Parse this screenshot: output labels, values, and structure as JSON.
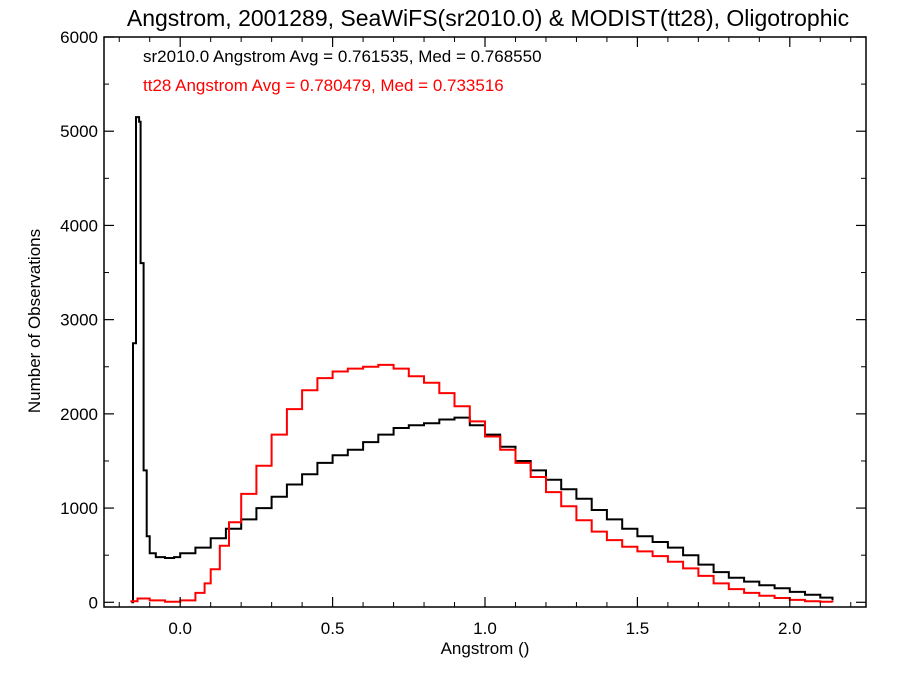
{
  "chart_data": {
    "type": "histogram",
    "title": "Angstrom, 2001289, SeaWiFS(sr2010.0) & MODIST(tt28), Oligotrophic",
    "xlabel": "Angstrom ()",
    "ylabel": "Number of Observations",
    "xlim": [
      -0.25,
      2.25
    ],
    "ylim": [
      -50,
      6000
    ],
    "xticks": [
      0.0,
      0.5,
      1.0,
      1.5,
      2.0
    ],
    "xtick_labels": [
      "0.0",
      "0.5",
      "1.0",
      "1.5",
      "2.0"
    ],
    "yticks": [
      0,
      1000,
      2000,
      3000,
      4000,
      5000,
      6000
    ],
    "ytick_labels": [
      "0",
      "1000",
      "2000",
      "3000",
      "4000",
      "5000",
      "6000"
    ],
    "grid": false,
    "legend": {
      "placement": "top-left",
      "entries": [
        {
          "text": "sr2010.0 Angstrom Avg = 0.761535, Med = 0.768550",
          "color": "#000000"
        },
        {
          "text": "tt28 Angstrom Avg = 0.780479, Med = 0.733516",
          "color": "#ff0000"
        }
      ]
    },
    "series": [
      {
        "name": "sr2010.0",
        "color": "#000000",
        "step": true,
        "points": [
          [
            -0.16,
            0
          ],
          [
            -0.155,
            2750
          ],
          [
            -0.145,
            5150
          ],
          [
            -0.135,
            5100
          ],
          [
            -0.13,
            3600
          ],
          [
            -0.12,
            1400
          ],
          [
            -0.11,
            700
          ],
          [
            -0.1,
            520
          ],
          [
            -0.08,
            480
          ],
          [
            -0.05,
            470
          ],
          [
            -0.02,
            480
          ],
          [
            0.0,
            520
          ],
          [
            0.05,
            580
          ],
          [
            0.1,
            680
          ],
          [
            0.15,
            780
          ],
          [
            0.2,
            880
          ],
          [
            0.25,
            1000
          ],
          [
            0.3,
            1120
          ],
          [
            0.35,
            1250
          ],
          [
            0.4,
            1360
          ],
          [
            0.45,
            1480
          ],
          [
            0.5,
            1560
          ],
          [
            0.55,
            1620
          ],
          [
            0.6,
            1700
          ],
          [
            0.65,
            1780
          ],
          [
            0.7,
            1850
          ],
          [
            0.75,
            1880
          ],
          [
            0.8,
            1900
          ],
          [
            0.85,
            1940
          ],
          [
            0.9,
            1960
          ],
          [
            0.95,
            1880
          ],
          [
            1.0,
            1780
          ],
          [
            1.05,
            1650
          ],
          [
            1.1,
            1500
          ],
          [
            1.15,
            1400
          ],
          [
            1.2,
            1300
          ],
          [
            1.25,
            1200
          ],
          [
            1.3,
            1100
          ],
          [
            1.35,
            980
          ],
          [
            1.4,
            880
          ],
          [
            1.45,
            780
          ],
          [
            1.5,
            700
          ],
          [
            1.55,
            640
          ],
          [
            1.6,
            580
          ],
          [
            1.65,
            500
          ],
          [
            1.7,
            400
          ],
          [
            1.75,
            320
          ],
          [
            1.8,
            260
          ],
          [
            1.85,
            220
          ],
          [
            1.9,
            180
          ],
          [
            1.95,
            150
          ],
          [
            2.0,
            110
          ],
          [
            2.05,
            80
          ],
          [
            2.1,
            50
          ],
          [
            2.14,
            20
          ]
        ]
      },
      {
        "name": "tt28",
        "color": "#ff0000",
        "step": true,
        "points": [
          [
            -0.16,
            10
          ],
          [
            -0.14,
            40
          ],
          [
            -0.1,
            20
          ],
          [
            -0.05,
            5
          ],
          [
            0.0,
            20
          ],
          [
            0.05,
            100
          ],
          [
            0.08,
            200
          ],
          [
            0.1,
            350
          ],
          [
            0.13,
            600
          ],
          [
            0.16,
            850
          ],
          [
            0.2,
            1150
          ],
          [
            0.25,
            1450
          ],
          [
            0.3,
            1780
          ],
          [
            0.35,
            2050
          ],
          [
            0.4,
            2250
          ],
          [
            0.45,
            2380
          ],
          [
            0.5,
            2450
          ],
          [
            0.55,
            2480
          ],
          [
            0.6,
            2500
          ],
          [
            0.65,
            2520
          ],
          [
            0.7,
            2480
          ],
          [
            0.75,
            2400
          ],
          [
            0.8,
            2330
          ],
          [
            0.85,
            2220
          ],
          [
            0.9,
            2080
          ],
          [
            0.95,
            1920
          ],
          [
            1.0,
            1760
          ],
          [
            1.05,
            1620
          ],
          [
            1.1,
            1480
          ],
          [
            1.15,
            1330
          ],
          [
            1.2,
            1170
          ],
          [
            1.25,
            1020
          ],
          [
            1.3,
            870
          ],
          [
            1.35,
            750
          ],
          [
            1.4,
            660
          ],
          [
            1.45,
            590
          ],
          [
            1.5,
            540
          ],
          [
            1.55,
            490
          ],
          [
            1.6,
            430
          ],
          [
            1.65,
            360
          ],
          [
            1.7,
            280
          ],
          [
            1.75,
            200
          ],
          [
            1.8,
            140
          ],
          [
            1.85,
            100
          ],
          [
            1.9,
            70
          ],
          [
            1.95,
            45
          ],
          [
            2.0,
            25
          ],
          [
            2.05,
            12
          ],
          [
            2.1,
            5
          ],
          [
            2.14,
            0
          ]
        ]
      }
    ]
  }
}
